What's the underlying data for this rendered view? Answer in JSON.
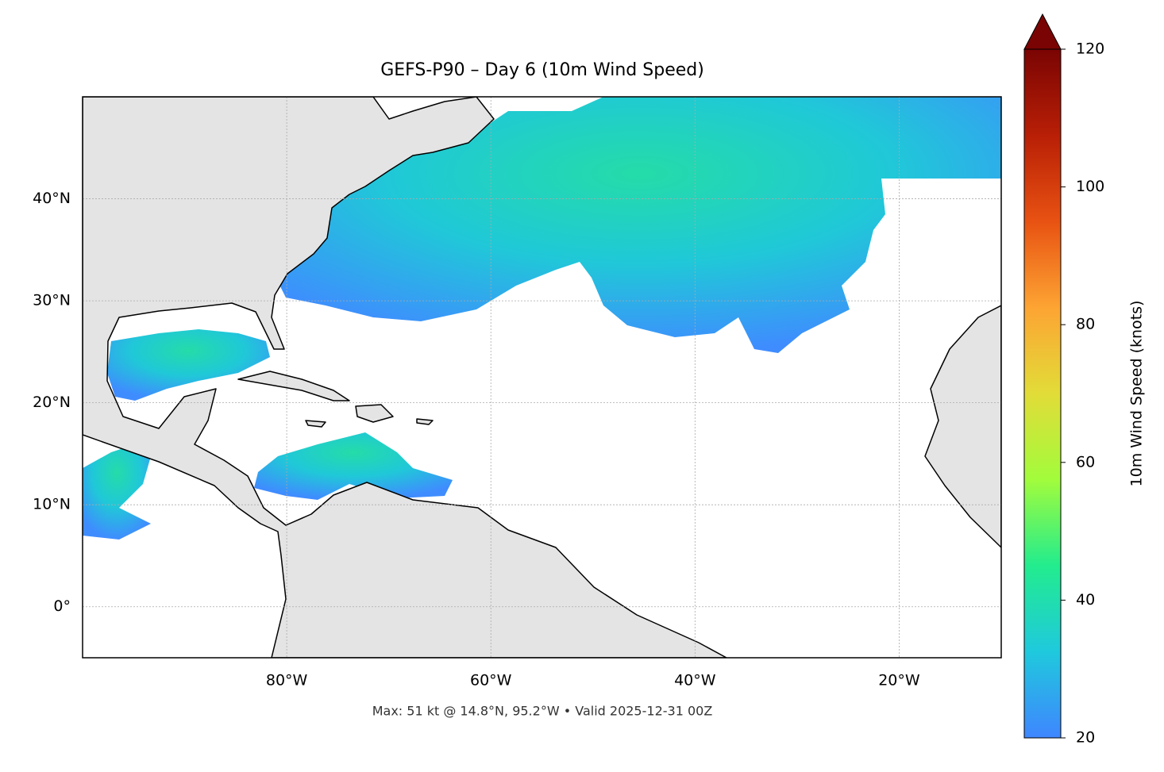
{
  "chart_data": {
    "type": "map",
    "title": "GEFS-P90 – Day 6 (10m Wind Speed)",
    "footnote": "Max: 51 kt @ 14.8°N, 95.2°W • Valid 2025-12-31 00Z",
    "xlim": [
      -100,
      -10
    ],
    "ylim": [
      -5,
      50
    ],
    "xticks": [
      {
        "value": -80,
        "label": "80°W"
      },
      {
        "value": -60,
        "label": "60°W"
      },
      {
        "value": -40,
        "label": "40°W"
      },
      {
        "value": -20,
        "label": "20°W"
      }
    ],
    "yticks": [
      {
        "value": 0,
        "label": "0°"
      },
      {
        "value": 10,
        "label": "10°N"
      },
      {
        "value": 20,
        "label": "20°N"
      },
      {
        "value": 30,
        "label": "30°N"
      },
      {
        "value": 40,
        "label": "40°N"
      }
    ],
    "grid": true,
    "colorbar": {
      "label": "10m Wind Speed (knots)",
      "clim": [
        20,
        120
      ],
      "ticks": [
        20,
        40,
        60,
        80,
        100,
        120
      ],
      "colors": [
        "#3f86ff",
        "#1fc9dd",
        "#22ec8e",
        "#a2fc3c",
        "#e2dc38",
        "#fda433",
        "#e85212",
        "#b81f06",
        "#7a0403"
      ]
    }
  }
}
